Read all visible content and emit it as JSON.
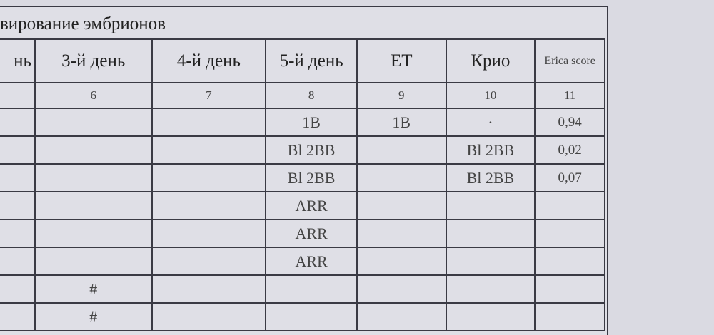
{
  "title": "вирование эмбрионов",
  "columns": [
    "нь",
    "3-й день",
    "4-й день",
    "5-й день",
    "ET",
    "Крио",
    "Erica score"
  ],
  "column_numbers": [
    "",
    "6",
    "7",
    "8",
    "9",
    "10",
    "11"
  ],
  "rows": [
    [
      "",
      "",
      "",
      "1B",
      "1B",
      "·",
      "0,94"
    ],
    [
      "",
      "",
      "",
      "Bl 2BB",
      "",
      "Bl 2BB",
      "0,02"
    ],
    [
      "",
      "",
      "",
      "Bl 2BB",
      "",
      "Bl 2BB",
      "0,07"
    ],
    [
      "",
      "",
      "",
      "ARR",
      "",
      "",
      ""
    ],
    [
      "",
      "",
      "",
      "ARR",
      "",
      "",
      ""
    ],
    [
      "",
      "",
      "",
      "ARR",
      "",
      "",
      ""
    ],
    [
      "",
      "#",
      "",
      "",
      "",
      "",
      ""
    ],
    [
      "",
      "#",
      "",
      "",
      "",
      "",
      ""
    ]
  ]
}
